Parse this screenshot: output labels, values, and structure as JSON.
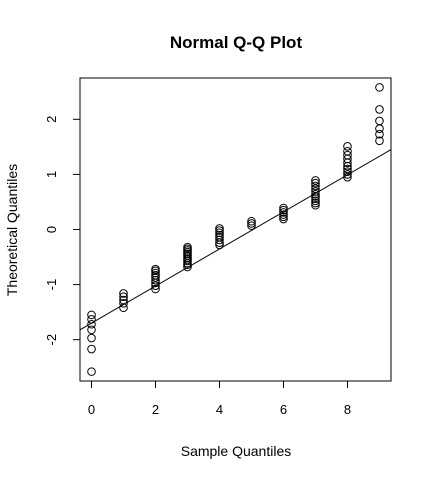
{
  "chart_data": {
    "type": "scatter",
    "title": "Normal Q-Q Plot",
    "xlabel": "Sample Quantiles",
    "ylabel": "Theoretical Quantiles",
    "xlim": [
      -0.36,
      9.36
    ],
    "ylim": [
      -2.75,
      2.75
    ],
    "x_ticks": [
      0,
      2,
      4,
      6,
      8
    ],
    "y_ticks": [
      -2,
      -1,
      0,
      1,
      2
    ],
    "point_style": "open-circle",
    "reference_line": {
      "x1": -0.36,
      "y1": -1.82,
      "x2": 9.36,
      "y2": 1.45
    },
    "series": [
      {
        "x": 0,
        "y": [
          -2.58,
          -2.17,
          -1.97,
          -1.82,
          -1.72,
          -1.63,
          -1.55
        ]
      },
      {
        "x": 1,
        "y": [
          -1.42,
          -1.34,
          -1.28,
          -1.22,
          -1.16
        ]
      },
      {
        "x": 2,
        "y": [
          -1.08,
          -1.02,
          -0.97,
          -0.92,
          -0.87,
          -0.83,
          -0.79,
          -0.75,
          -0.72
        ]
      },
      {
        "x": 3,
        "y": [
          -0.68,
          -0.64,
          -0.61,
          -0.57,
          -0.54,
          -0.51,
          -0.47,
          -0.44,
          -0.41,
          -0.38,
          -0.35,
          -0.32
        ]
      },
      {
        "x": 4,
        "y": [
          -0.28,
          -0.24,
          -0.19,
          -0.14,
          -0.1,
          -0.06,
          -0.02,
          0.02
        ]
      },
      {
        "x": 5,
        "y": [
          0.07,
          0.11,
          0.15
        ]
      },
      {
        "x": 6,
        "y": [
          0.19,
          0.23,
          0.27,
          0.31,
          0.35,
          0.39
        ]
      },
      {
        "x": 7,
        "y": [
          0.44,
          0.48,
          0.52,
          0.56,
          0.6,
          0.64,
          0.69,
          0.74,
          0.79,
          0.84,
          0.89
        ]
      },
      {
        "x": 8,
        "y": [
          0.95,
          1.0,
          1.05,
          1.1,
          1.15,
          1.21,
          1.28,
          1.35,
          1.42,
          1.51
        ]
      },
      {
        "x": 9,
        "y": [
          1.61,
          1.73,
          1.83,
          1.97,
          2.18,
          2.58
        ]
      }
    ]
  }
}
